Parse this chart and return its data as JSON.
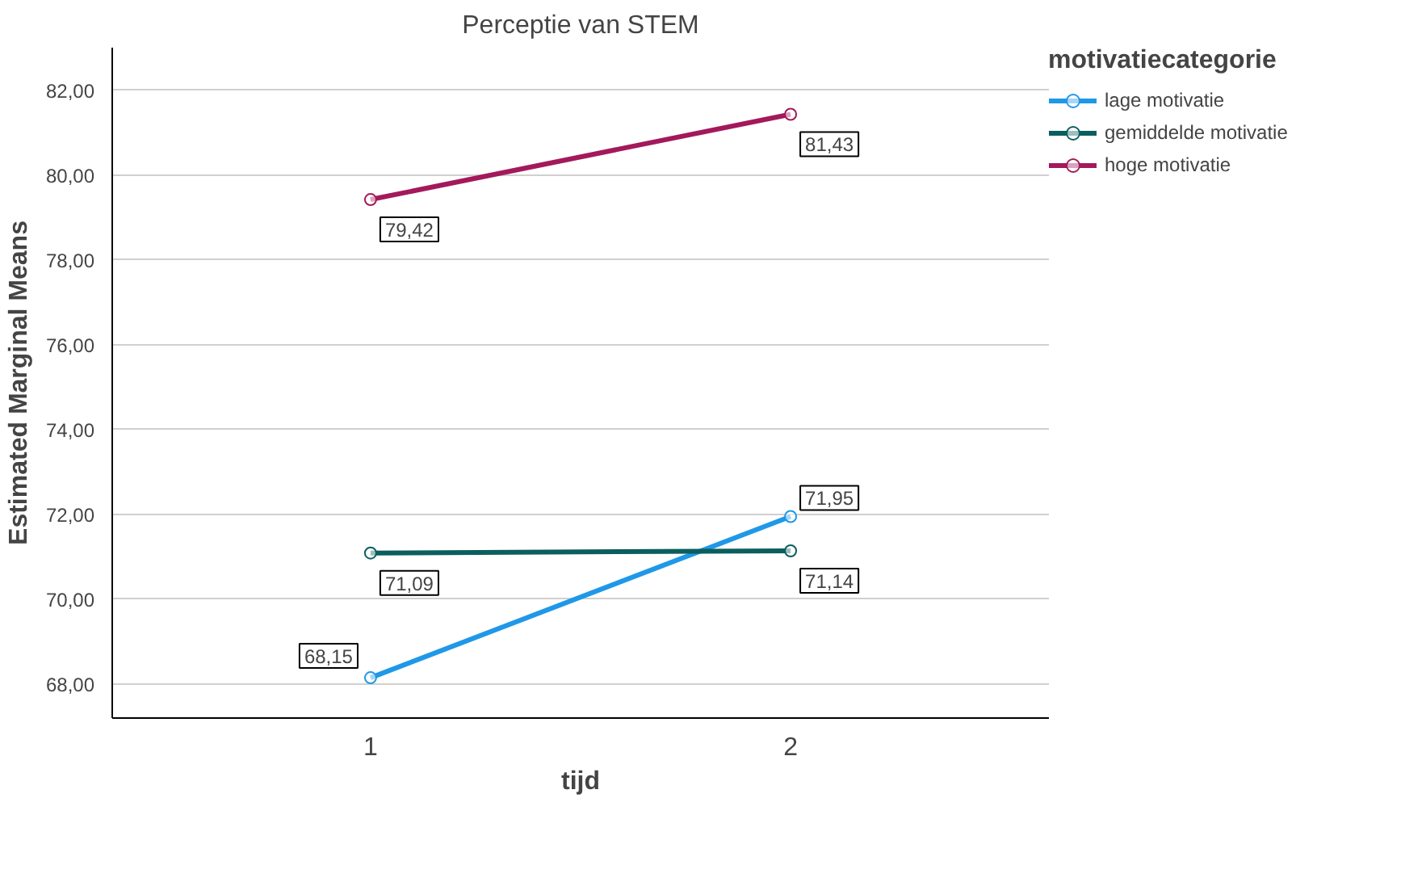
{
  "chart_data": {
    "type": "line",
    "title": "Perceptie van STEM",
    "xlabel": "tijd",
    "ylabel": "Estimated Marginal Means",
    "legend_title": "motivatiecategorie",
    "x": [
      1,
      2
    ],
    "xlim": [
      0.385,
      2.615
    ],
    "xticks": [
      1,
      2
    ],
    "ylim": [
      67.2,
      83.0
    ],
    "yticks": [
      {
        "value": 68,
        "label": "68,00"
      },
      {
        "value": 70,
        "label": "70,00"
      },
      {
        "value": 72,
        "label": "72,00"
      },
      {
        "value": 74,
        "label": "74,00"
      },
      {
        "value": 76,
        "label": "76,00"
      },
      {
        "value": 78,
        "label": "78,00"
      },
      {
        "value": 80,
        "label": "80,00"
      },
      {
        "value": 82,
        "label": "82,00"
      }
    ],
    "series": [
      {
        "name": "lage motivatie",
        "color": "#1f98e8",
        "values": [
          68.15,
          71.95
        ],
        "value_labels": [
          "68,15",
          "71,95"
        ]
      },
      {
        "name": "gemiddelde motivatie",
        "color": "#0b5e5e",
        "values": [
          71.09,
          71.14
        ],
        "value_labels": [
          "71,09",
          "71,14"
        ]
      },
      {
        "name": "hoge motivatie",
        "color": "#a3195b",
        "values": [
          79.42,
          81.43
        ],
        "value_labels": [
          "79,42",
          "81,43"
        ]
      }
    ],
    "grid": "y",
    "legend": "top right",
    "marker": "circle",
    "line_style": "solid"
  }
}
